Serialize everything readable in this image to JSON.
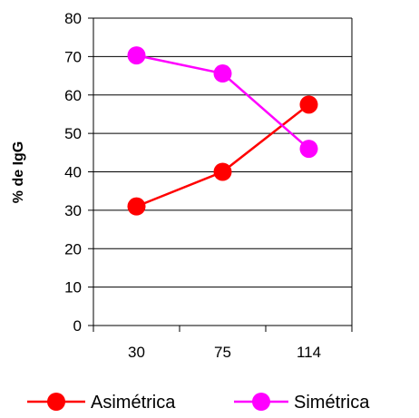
{
  "chart_data": {
    "type": "line",
    "categories": [
      "30",
      "75",
      "114"
    ],
    "series": [
      {
        "name": "Asimétrica",
        "values": [
          31,
          40,
          57.5
        ],
        "color": "#ff0000"
      },
      {
        "name": "Simétrica",
        "values": [
          70.3,
          65.6,
          46
        ],
        "color": "#ff00ff"
      }
    ],
    "ylabel": "% de IgG",
    "ylim": [
      0,
      80
    ],
    "yticks": [
      0,
      10,
      20,
      30,
      40,
      50,
      60,
      70,
      80
    ],
    "grid": true,
    "legend": "bottom"
  }
}
